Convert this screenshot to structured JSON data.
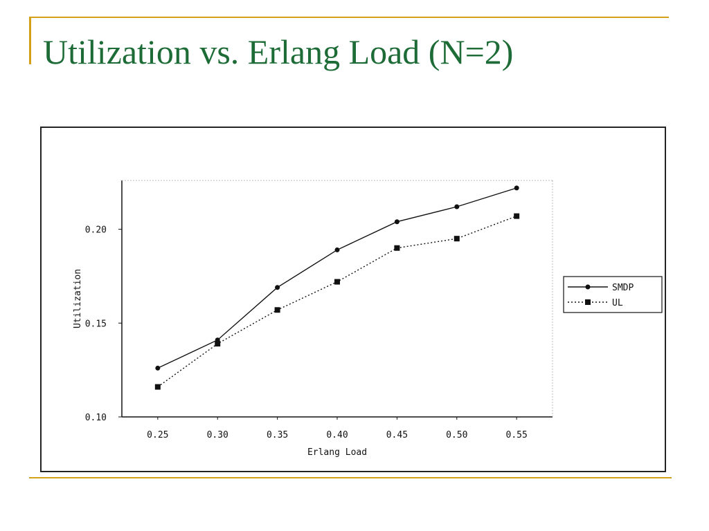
{
  "slide": {
    "title": "Utilization vs. Erlang Load (N=2)",
    "accent_color": "#d4a017",
    "title_color": "#1d6b36"
  },
  "chart_data": {
    "type": "line",
    "title": "",
    "xlabel": "Erlang Load",
    "ylabel": "Utilization",
    "x": [
      0.25,
      0.3,
      0.35,
      0.4,
      0.45,
      0.5,
      0.55
    ],
    "x_tick_labels": [
      "0.25",
      "0.30",
      "0.35",
      "0.40",
      "0.45",
      "0.50",
      "0.55"
    ],
    "y_tick_labels": [
      "0.10",
      "0.15",
      "0.20"
    ],
    "y_ticks": [
      0.1,
      0.15,
      0.2
    ],
    "xlim": [
      0.22,
      0.58
    ],
    "ylim": [
      0.1,
      0.226
    ],
    "grid": false,
    "legend_position": "right",
    "series": [
      {
        "name": "SMDP",
        "values": [
          0.126,
          0.141,
          0.169,
          0.189,
          0.204,
          0.212,
          0.222
        ],
        "style": "solid",
        "marker": "dot",
        "color": "#111111"
      },
      {
        "name": "UL",
        "values": [
          0.116,
          0.139,
          0.157,
          0.172,
          0.19,
          0.195,
          0.207
        ],
        "style": "dotted",
        "marker": "square",
        "color": "#111111"
      }
    ]
  }
}
